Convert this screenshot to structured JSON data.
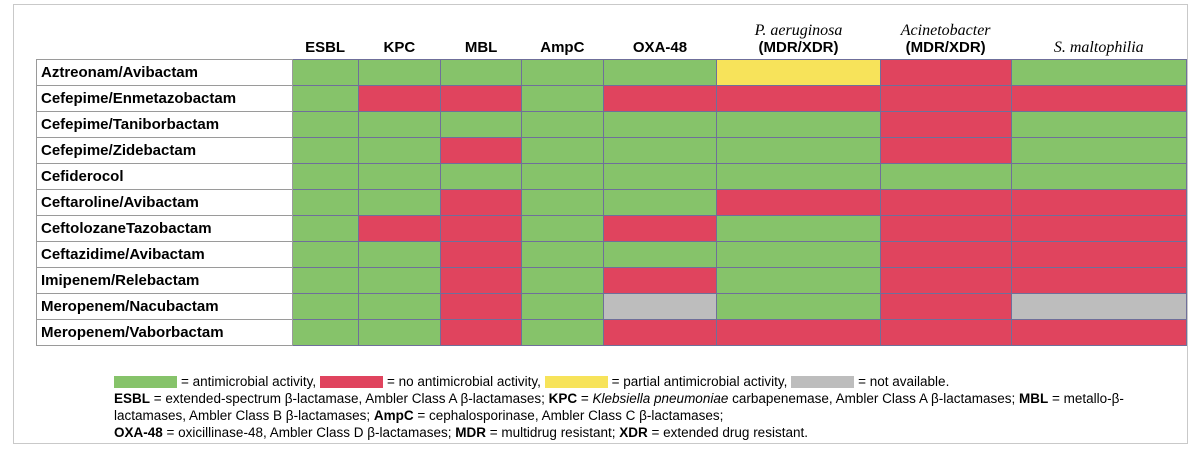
{
  "columns": [
    {
      "label": "ESBL"
    },
    {
      "label": "KPC"
    },
    {
      "label": "MBL"
    },
    {
      "label": "AmpC"
    },
    {
      "label": "OXA-48"
    },
    {
      "label": "P. aeruginosa",
      "sub": "(MDR/XDR)"
    },
    {
      "label": "Acinetobacter",
      "sub": "(MDR/XDR)"
    },
    {
      "label": "S. maltophilia"
    }
  ],
  "rows": [
    {
      "name": "Aztreonam/Avibactam",
      "cells": [
        "g",
        "g",
        "g",
        "g",
        "g",
        "y",
        "r",
        "g"
      ]
    },
    {
      "name": "Cefepime/Enmetazobactam",
      "cells": [
        "g",
        "r",
        "r",
        "g",
        "r",
        "r",
        "r",
        "r"
      ]
    },
    {
      "name": "Cefepime/Taniborbactam",
      "cells": [
        "g",
        "g",
        "g",
        "g",
        "g",
        "g",
        "r",
        "g"
      ]
    },
    {
      "name": "Cefepime/Zidebactam",
      "cells": [
        "g",
        "g",
        "r",
        "g",
        "g",
        "g",
        "r",
        "g"
      ]
    },
    {
      "name": "Cefiderocol",
      "cells": [
        "g",
        "g",
        "g",
        "g",
        "g",
        "g",
        "g",
        "g"
      ]
    },
    {
      "name": "Ceftaroline/Avibactam",
      "cells": [
        "g",
        "g",
        "r",
        "g",
        "g",
        "r",
        "r",
        "r"
      ]
    },
    {
      "name": "CeftolozaneTazobactam",
      "cells": [
        "g",
        "r",
        "r",
        "g",
        "r",
        "g",
        "r",
        "r"
      ]
    },
    {
      "name": "Ceftazidime/Avibactam",
      "cells": [
        "g",
        "g",
        "r",
        "g",
        "g",
        "g",
        "r",
        "r"
      ]
    },
    {
      "name": "Imipenem/Relebactam",
      "cells": [
        "g",
        "g",
        "r",
        "g",
        "r",
        "g",
        "r",
        "r"
      ]
    },
    {
      "name": "Meropenem/Nacubactam",
      "cells": [
        "g",
        "g",
        "r",
        "g",
        "n",
        "g",
        "r",
        "n"
      ]
    },
    {
      "name": "Meropenem/Vaborbactam",
      "cells": [
        "g",
        "g",
        "r",
        "g",
        "r",
        "r",
        "r",
        "r"
      ]
    }
  ],
  "legend": {
    "colors": {
      "g": "#86c36a",
      "r": "#e0445e",
      "y": "#f7e35a",
      "n": "#bdbdbd"
    },
    "activity": "= antimicrobial activity,",
    "no_activity": "= no antimicrobial activity,",
    "partial": "= partial antimicrobial activity,",
    "na": "= not available.",
    "abbr": {
      "esbl_key": "ESBL",
      "esbl_text": " = extended-spectrum β-lactamase, Ambler Class A β-lactamases; ",
      "kpc_key": "KPC",
      "kpc_eq": " = ",
      "kpc_italic": "Klebsiella pneumoniae",
      "kpc_text": " carbapenemase, Ambler Class A β-lactamases; ",
      "mbl_key": "MBL",
      "mbl_text": " = metallo-β-lactamases, Ambler Class B β-lactamases; ",
      "ampc_key": "AmpC",
      "ampc_text": " = cephalosporinase, Ambler Class C β-lactamases;",
      "oxa_key": "OXA-48",
      "oxa_text": " = oxicillinase-48, Ambler Class D β-lactamases; ",
      "mdr_key": "MDR",
      "mdr_text": " = multidrug resistant; ",
      "xdr_key": "XDR",
      "xdr_text": " = extended drug resistant."
    }
  }
}
